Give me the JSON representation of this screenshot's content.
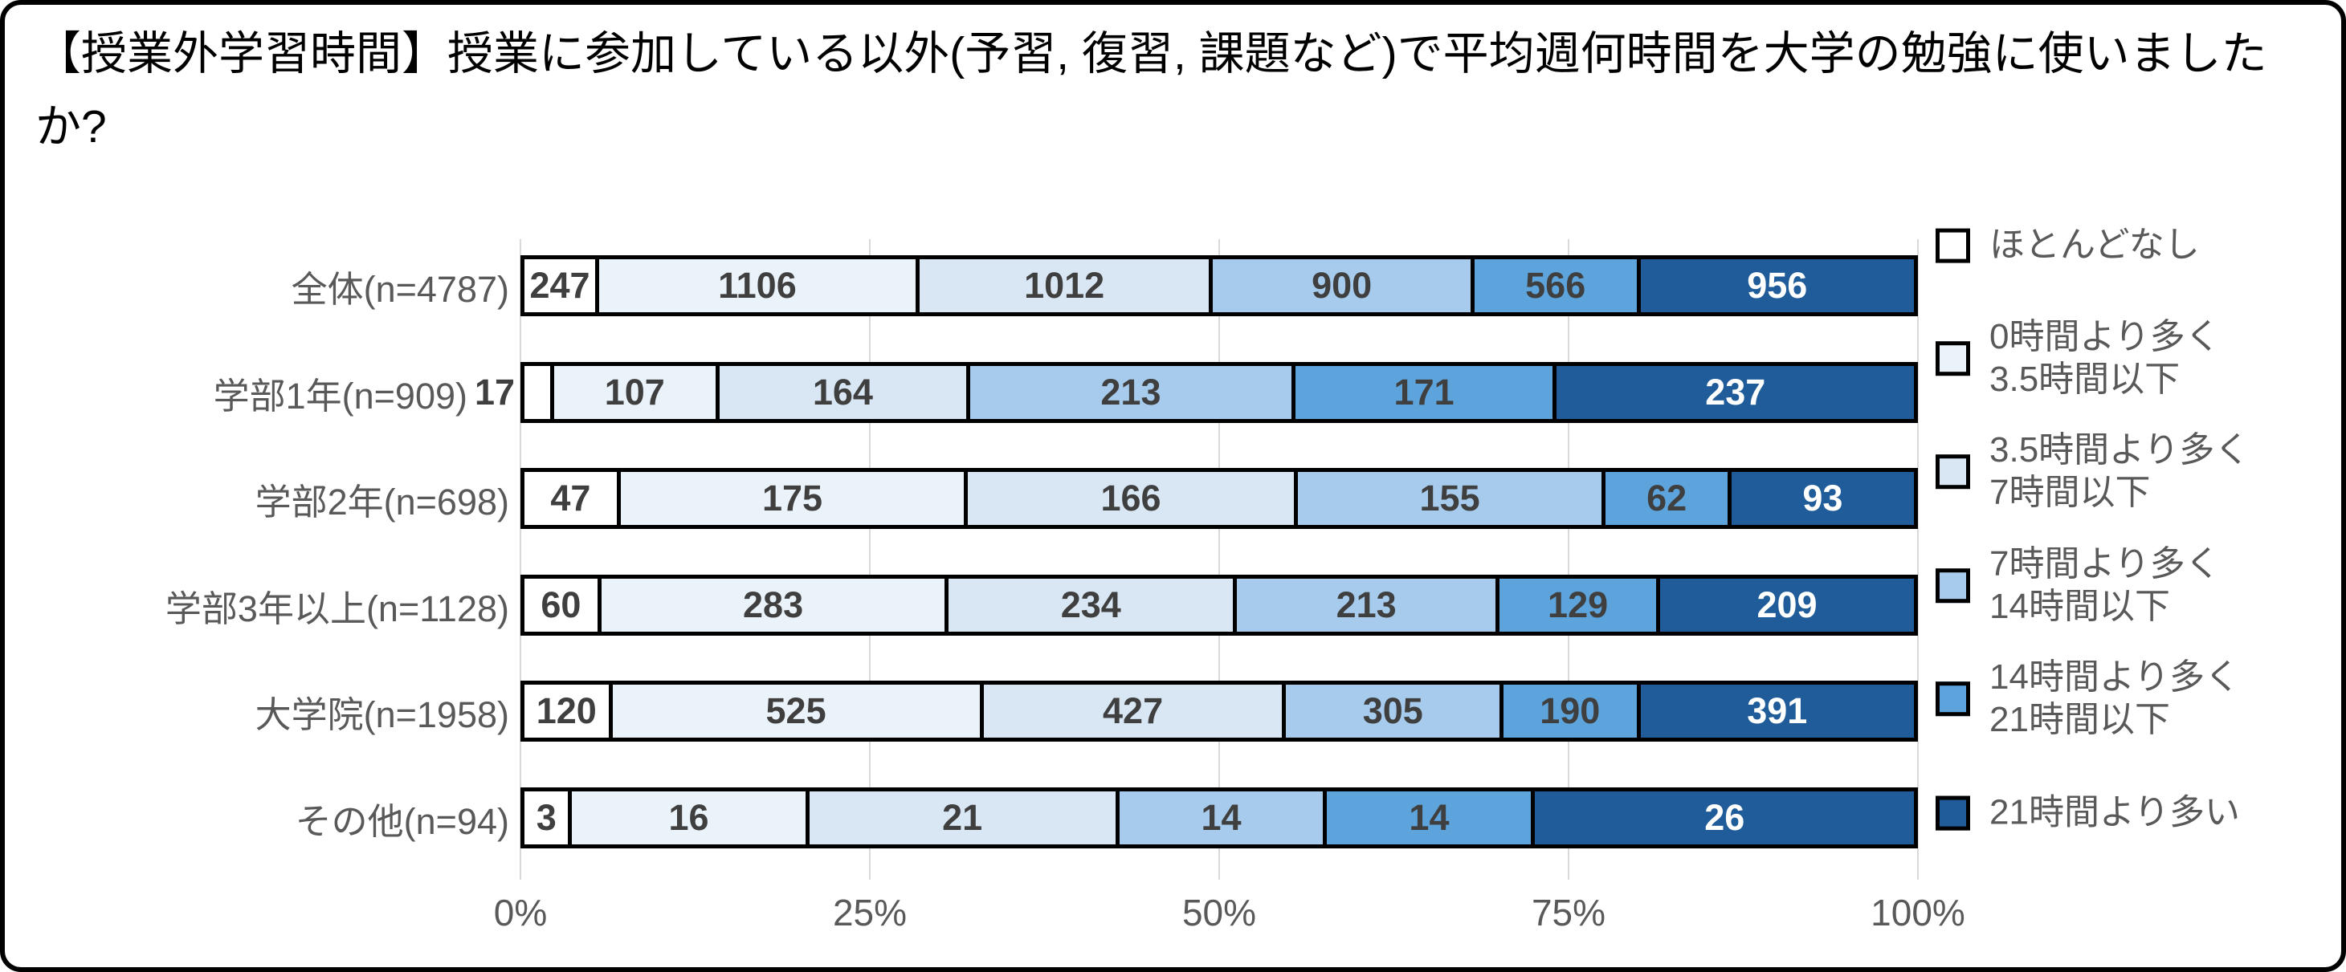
{
  "title": "【授業外学習時間】授業に参加している以外(予習, 復習, 課題など)で平均週何時間を大学の勉強に使いましたか?",
  "colors": {
    "grid": "#D9D9D9",
    "axis_text": "#595959",
    "category_text": "#595959",
    "value_text": "#3F3F3F",
    "value_text_on_dark": "#FFFFFF",
    "bar_border": "#000000",
    "frame_border": "#000000"
  },
  "chart_data": {
    "type": "bar",
    "variant": "100pct-stacked-horizontal",
    "title": "【授業外学習時間】授業に参加している以外(予習, 復習, 課題など)で平均週何時間を大学の勉強に使いましたか?",
    "categories": [
      "全体(n=4787)",
      "学部1年(n=909)",
      "学部2年(n=698)",
      "学部3年以上(n=1128)",
      "大学院(n=1958)",
      "その他(n=94)"
    ],
    "totals": [
      4787,
      909,
      698,
      1128,
      1958,
      94
    ],
    "series": [
      {
        "name": "ほとんどなし",
        "color": "#FFFFFF",
        "label_color": "#3F3F3F",
        "values": [
          247,
          17,
          47,
          60,
          120,
          3
        ]
      },
      {
        "name": "0時間より多く3.5時間以下",
        "color": "#EBF3FA",
        "label_color": "#3F3F3F",
        "values": [
          1106,
          107,
          175,
          283,
          525,
          16
        ]
      },
      {
        "name": "3.5時間より多く7時間以下",
        "color": "#D9E7F5",
        "label_color": "#3F3F3F",
        "values": [
          1012,
          164,
          166,
          234,
          427,
          21
        ]
      },
      {
        "name": "7時間より多く14時間以下",
        "color": "#A6CBEC",
        "label_color": "#3F3F3F",
        "values": [
          900,
          213,
          155,
          213,
          305,
          14
        ]
      },
      {
        "name": "14時間より多く21時間以下",
        "color": "#5EA4DC",
        "label_color": "#3F3F3F",
        "values": [
          566,
          171,
          62,
          129,
          190,
          14
        ]
      },
      {
        "name": "21時間より多い",
        "color": "#1F5C99",
        "label_color": "#FFFFFF",
        "values": [
          956,
          237,
          93,
          209,
          391,
          26
        ]
      }
    ],
    "legend": {
      "position": "right",
      "items": [
        {
          "lines": [
            "ほとんどなし"
          ]
        },
        {
          "lines": [
            "0時間より多く",
            "3.5時間以下"
          ]
        },
        {
          "lines": [
            "3.5時間より多く",
            "7時間以下"
          ]
        },
        {
          "lines": [
            "7時間より多く",
            "14時間以下"
          ]
        },
        {
          "lines": [
            "14時間より多く",
            "21時間以下"
          ]
        },
        {
          "lines": [
            "21時間より多い"
          ]
        }
      ]
    },
    "x_axis": {
      "tick_labels": [
        "0%",
        "25%",
        "50%",
        "75%",
        "100%"
      ],
      "tick_values": [
        0,
        25,
        50,
        75,
        100
      ],
      "range": [
        0,
        100
      ],
      "grid": true
    }
  }
}
